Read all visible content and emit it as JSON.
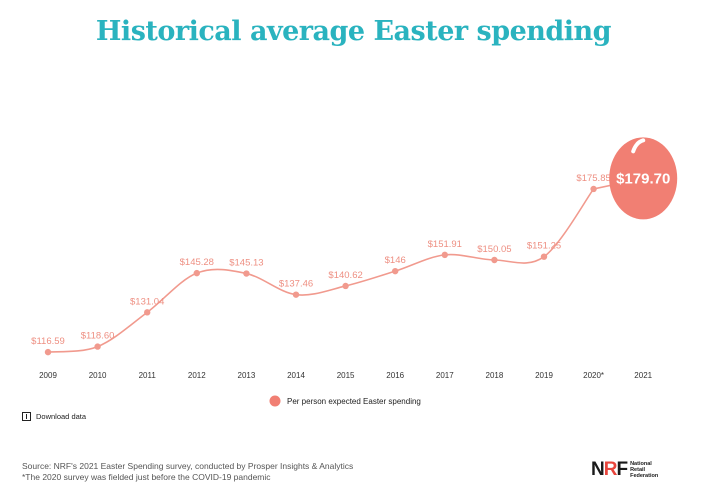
{
  "title": "Historical average Easter spending",
  "colors": {
    "title": "#2ab3bf",
    "line": "#f19a8e",
    "label": "#ee8f82",
    "egg": "#f17f73",
    "axis_text": "#333333"
  },
  "chart_data": {
    "type": "line",
    "x": [
      "2009",
      "2010",
      "2011",
      "2012",
      "2013",
      "2014",
      "2015",
      "2016",
      "2017",
      "2018",
      "2019",
      "2020*",
      "2021"
    ],
    "series": [
      {
        "name": "Per person expected Easter spending",
        "values": [
          116.59,
          118.6,
          131.04,
          145.28,
          145.13,
          137.46,
          140.62,
          146,
          151.91,
          150.05,
          151.25,
          175.85,
          179.7
        ],
        "labels": [
          "$116.59",
          "$118.60",
          "$131.04",
          "$145.28",
          "$145.13",
          "$137.46",
          "$140.62",
          "$146",
          "$151.91",
          "$150.05",
          "$151.25",
          "$175.85",
          "$179.70"
        ]
      }
    ],
    "ylim": [
      113,
      190
    ],
    "highlight_last": true,
    "legend_position": "bottom-center",
    "grid": false
  },
  "legend": {
    "label": "Per person expected Easter spending"
  },
  "download": {
    "label": "Download data"
  },
  "source": {
    "line1": "Source: NRF's 2021 Easter Spending survey, conducted by Prosper Insights & Analytics",
    "line2": "*The 2020 survey was fielded just before the COVID-19 pandemic"
  },
  "logo": {
    "mark_n": "N",
    "mark_r": "R",
    "mark_f": "F",
    "text": "National Retail Federation"
  }
}
